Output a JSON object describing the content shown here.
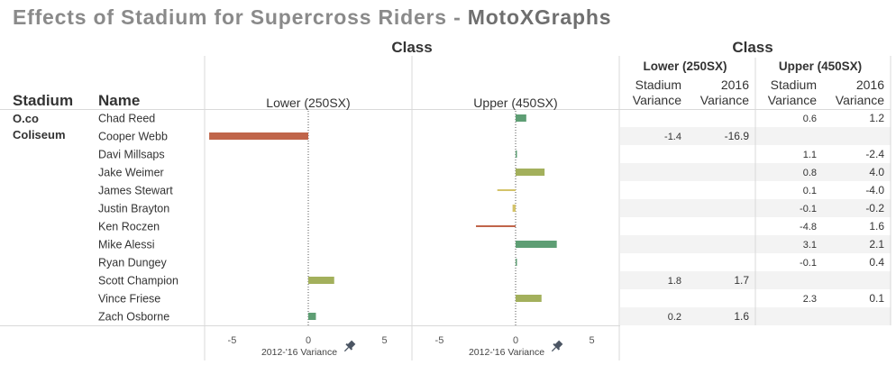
{
  "title": {
    "main": "Effects of Stadium for Supercross Riders - ",
    "brand": "MotoXGraphs"
  },
  "headers": {
    "class": "Class",
    "stadium": "Stadium",
    "name": "Name",
    "stadium_variance_line1": "Stadium",
    "stadium_variance_line2": "Variance",
    "y2016_variance_line1": "2016",
    "y2016_variance_line2": "Variance"
  },
  "stadium_label_line1": "O.co",
  "stadium_label_line2": "Coliseum",
  "x_axis_title": "2012-'16 Variance",
  "pin_icon": "pin-icon",
  "colors": {
    "negative_strong": "#c0654a",
    "negative_light": "#d4c36a",
    "positive_light": "#a3b05c",
    "positive_strong": "#5e9e74",
    "band": "#f3f3f3",
    "divider": "#d9d9d9",
    "zero_line": "#555555"
  },
  "chart_data": {
    "type": "bar",
    "orientation": "horizontal",
    "xlim": [
      -6.8,
      6.8
    ],
    "xticks": [
      -5,
      0,
      5
    ],
    "xlabel": "2012-'16 Variance",
    "panels": [
      {
        "name": "Lower (250SX)",
        "values": [
          null,
          -6.5,
          null,
          null,
          null,
          null,
          null,
          null,
          null,
          1.7,
          null,
          0.5
        ]
      },
      {
        "name": "Upper (450SX)",
        "values": [
          0.7,
          null,
          0.0,
          1.9,
          -1.2,
          -0.2,
          -2.6,
          2.7,
          0.0,
          null,
          1.7,
          null
        ]
      }
    ],
    "categories": [
      "Chad Reed",
      "Cooper Webb",
      "Davi Millsaps",
      "Jake Weimer",
      "James Stewart",
      "Justin Brayton",
      "Ken Roczen",
      "Mike Alessi",
      "Ryan Dungey",
      "Scott Champion",
      "Vince Friese",
      "Zach Osborne"
    ]
  },
  "table": {
    "groups": [
      "Lower (250SX)",
      "Upper (450SX)"
    ],
    "rows": [
      {
        "lower": [
          "",
          ""
        ],
        "upper": [
          "0.6",
          "1.2"
        ]
      },
      {
        "lower": [
          "-1.4",
          "-16.9"
        ],
        "upper": [
          "",
          ""
        ]
      },
      {
        "lower": [
          "",
          ""
        ],
        "upper": [
          "1.1",
          "-2.4"
        ]
      },
      {
        "lower": [
          "",
          ""
        ],
        "upper": [
          "0.8",
          "4.0"
        ]
      },
      {
        "lower": [
          "",
          ""
        ],
        "upper": [
          "0.1",
          "-4.0"
        ]
      },
      {
        "lower": [
          "",
          ""
        ],
        "upper": [
          "-0.1",
          "-0.2"
        ]
      },
      {
        "lower": [
          "",
          ""
        ],
        "upper": [
          "-4.8",
          "1.6"
        ]
      },
      {
        "lower": [
          "",
          ""
        ],
        "upper": [
          "3.1",
          "2.1"
        ]
      },
      {
        "lower": [
          "",
          ""
        ],
        "upper": [
          "-0.1",
          "0.4"
        ]
      },
      {
        "lower": [
          "1.8",
          "1.7"
        ],
        "upper": [
          "",
          ""
        ]
      },
      {
        "lower": [
          "",
          ""
        ],
        "upper": [
          "2.3",
          "0.1"
        ]
      },
      {
        "lower": [
          "0.2",
          "1.6"
        ],
        "upper": [
          "",
          ""
        ]
      }
    ]
  }
}
